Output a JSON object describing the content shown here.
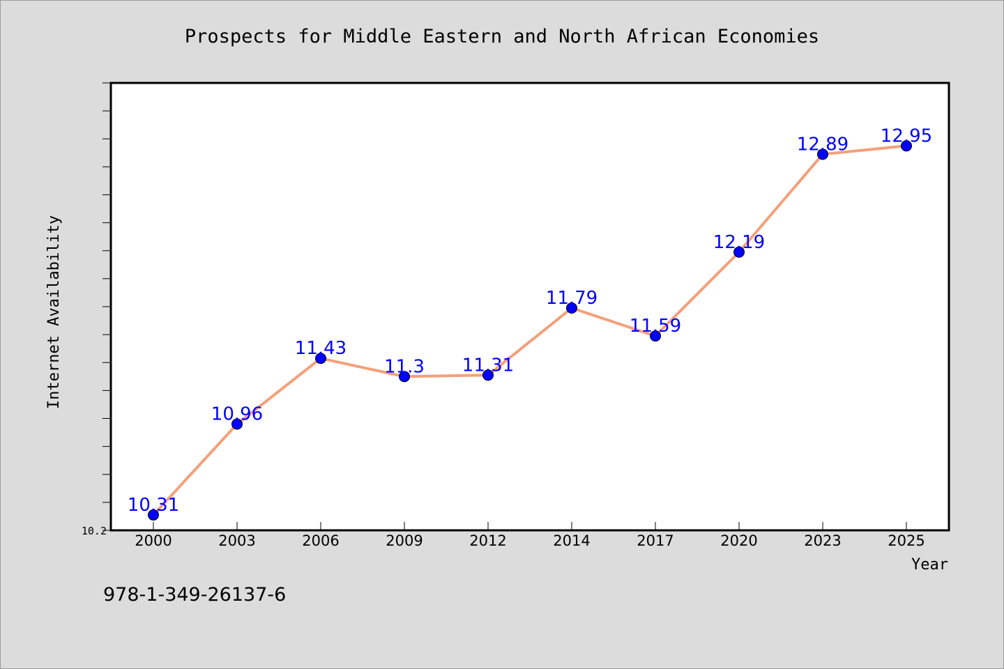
{
  "chart_data": {
    "type": "line",
    "title": "Prospects for Middle Eastern and North African Economies",
    "xlabel": "Year",
    "ylabel": "Internet Availability",
    "categories": [
      "2000",
      "2003",
      "2006",
      "2009",
      "2012",
      "2014",
      "2017",
      "2020",
      "2023",
      "2025"
    ],
    "series": [
      {
        "values": [
          10.31,
          10.96,
          11.43,
          11.3,
          11.31,
          11.79,
          11.59,
          12.19,
          12.89,
          12.95
        ],
        "labels": [
          "10.31",
          "10.96",
          "11.43",
          "11.3",
          "11.31",
          "11.79",
          "11.59",
          "12.19",
          "12.89",
          "12.95"
        ]
      }
    ],
    "ylim": [
      10.2,
      13.4
    ],
    "y_tick_labels": [
      "10.2"
    ],
    "y_minor_tick_step": 0.2,
    "grid": false,
    "colors": {
      "line": "#f4a07a",
      "marker": "#0000ff",
      "label": "#0000ff",
      "plot_background": "#ffffff",
      "figure_background": "#dcdcdc"
    }
  },
  "footer": {
    "isbn": "978-1-349-26137-6"
  }
}
